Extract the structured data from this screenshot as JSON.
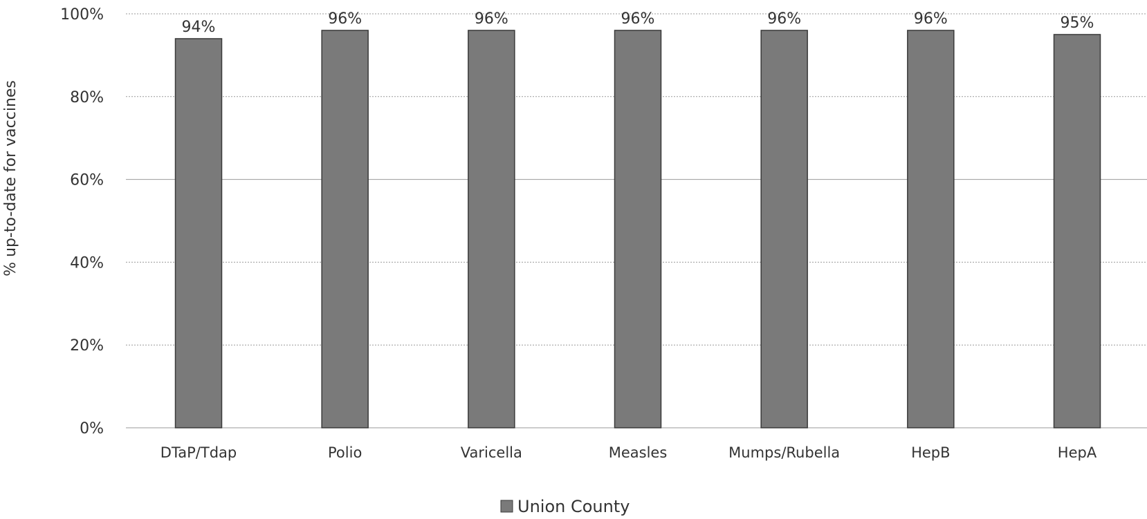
{
  "chart_data": {
    "type": "bar",
    "categories": [
      "DTaP/Tdap",
      "Polio",
      "Varicella",
      "Measles",
      "Mumps/Rubella",
      "HepB",
      "HepA"
    ],
    "series": [
      {
        "name": "Union County",
        "values": [
          94,
          96,
          96,
          96,
          96,
          96,
          95
        ],
        "color": "#7a7a7a"
      }
    ],
    "data_labels": [
      "94%",
      "96%",
      "96%",
      "96%",
      "96%",
      "96%",
      "95%"
    ],
    "ylabel": "% up-to-date for vaccines",
    "xlabel": "",
    "ylim": [
      0,
      100
    ],
    "yticks": [
      0,
      20,
      40,
      60,
      80,
      100
    ],
    "ytick_labels": [
      "0%",
      "20%",
      "40%",
      "60%",
      "80%",
      "100%"
    ],
    "grid": true,
    "legend_position": "bottom"
  }
}
